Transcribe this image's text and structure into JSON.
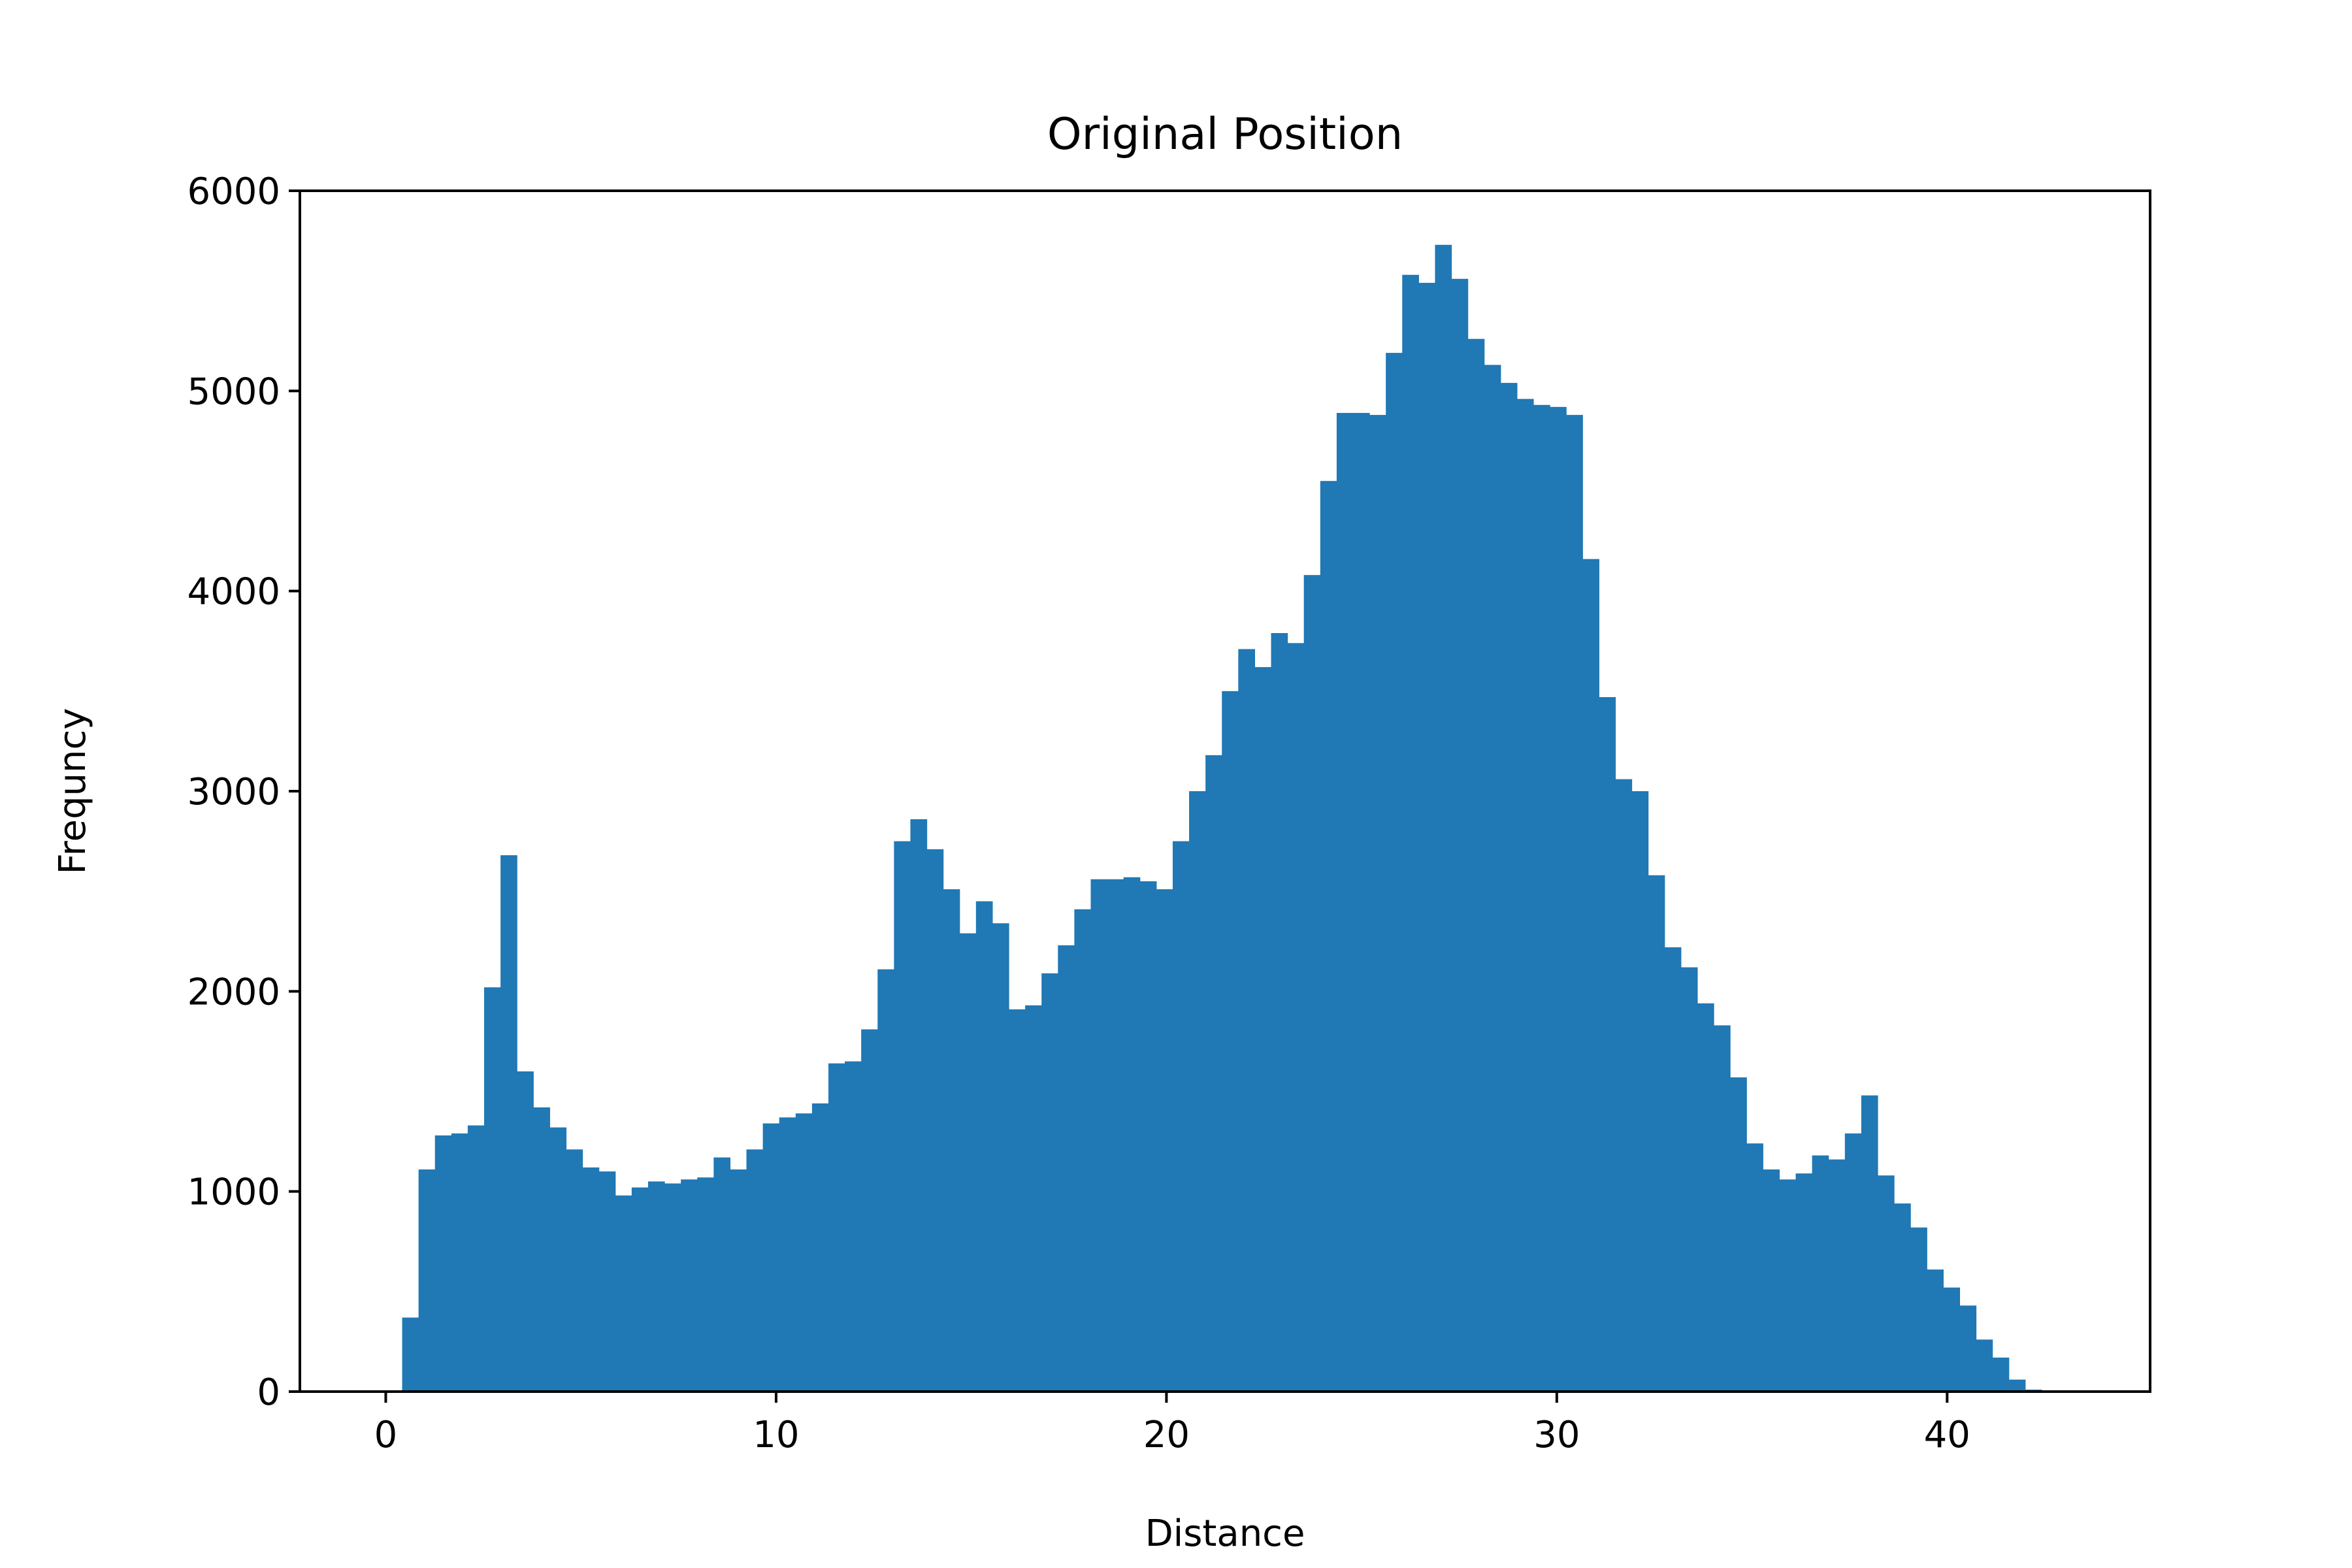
{
  "chart_data": {
    "type": "histogram",
    "title": "Original Position",
    "xlabel": "Distance",
    "ylabel": "Frequncy",
    "xlim": [
      -2.2,
      45.2
    ],
    "ylim": [
      0,
      6000
    ],
    "xticks": [
      0,
      10,
      20,
      30,
      40
    ],
    "yticks": [
      0,
      1000,
      2000,
      3000,
      4000,
      5000,
      6000
    ],
    "grid": false,
    "legend": null,
    "bar_color": "#2078b4",
    "bin_start": 0.42,
    "bin_width": 0.42,
    "counts": [
      370,
      1110,
      1280,
      1290,
      1330,
      2020,
      2680,
      1600,
      1420,
      1320,
      1210,
      1120,
      1100,
      980,
      1020,
      1050,
      1040,
      1060,
      1070,
      1170,
      1110,
      1210,
      1340,
      1370,
      1390,
      1440,
      1640,
      1650,
      1810,
      2110,
      2750,
      2860,
      2710,
      2510,
      2290,
      2450,
      2340,
      1910,
      1930,
      2090,
      2230,
      2410,
      2560,
      2560,
      2570,
      2550,
      2510,
      2750,
      3000,
      3180,
      3500,
      3710,
      3620,
      3790,
      3740,
      4080,
      4550,
      4890,
      4890,
      4880,
      5190,
      5580,
      5540,
      5730,
      5560,
      5260,
      5130,
      5040,
      4960,
      4930,
      4920,
      4880,
      4160,
      3470,
      3060,
      3000,
      2580,
      2220,
      2120,
      1940,
      1830,
      1570,
      1240,
      1110,
      1060,
      1090,
      1180,
      1160,
      1290,
      1480,
      1080,
      940,
      820,
      610,
      520,
      430,
      260,
      170,
      60,
      10,
      5
    ]
  }
}
